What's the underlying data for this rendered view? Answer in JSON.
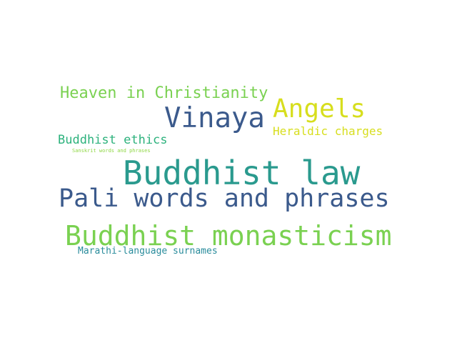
{
  "words": [
    {
      "text": "Buddhist law",
      "color": "#2a9a8e"
    },
    {
      "text": "Buddhist monasticism",
      "color": "#7ad151"
    },
    {
      "text": "Pali words and phrases",
      "color": "#3b5a8c"
    },
    {
      "text": "Vinaya",
      "color": "#3b5a8c"
    },
    {
      "text": "Angels",
      "color": "#d7de1e"
    },
    {
      "text": "Heaven in Christianity",
      "color": "#7ad151"
    },
    {
      "text": "Buddhist ethics",
      "color": "#2db27d"
    },
    {
      "text": "Heraldic charges",
      "color": "#d7de1e"
    },
    {
      "text": "Marathi-language surnames",
      "color": "#2a8c9c"
    },
    {
      "text": "Sanskrit words and phrases",
      "color": "#8fd744"
    }
  ]
}
